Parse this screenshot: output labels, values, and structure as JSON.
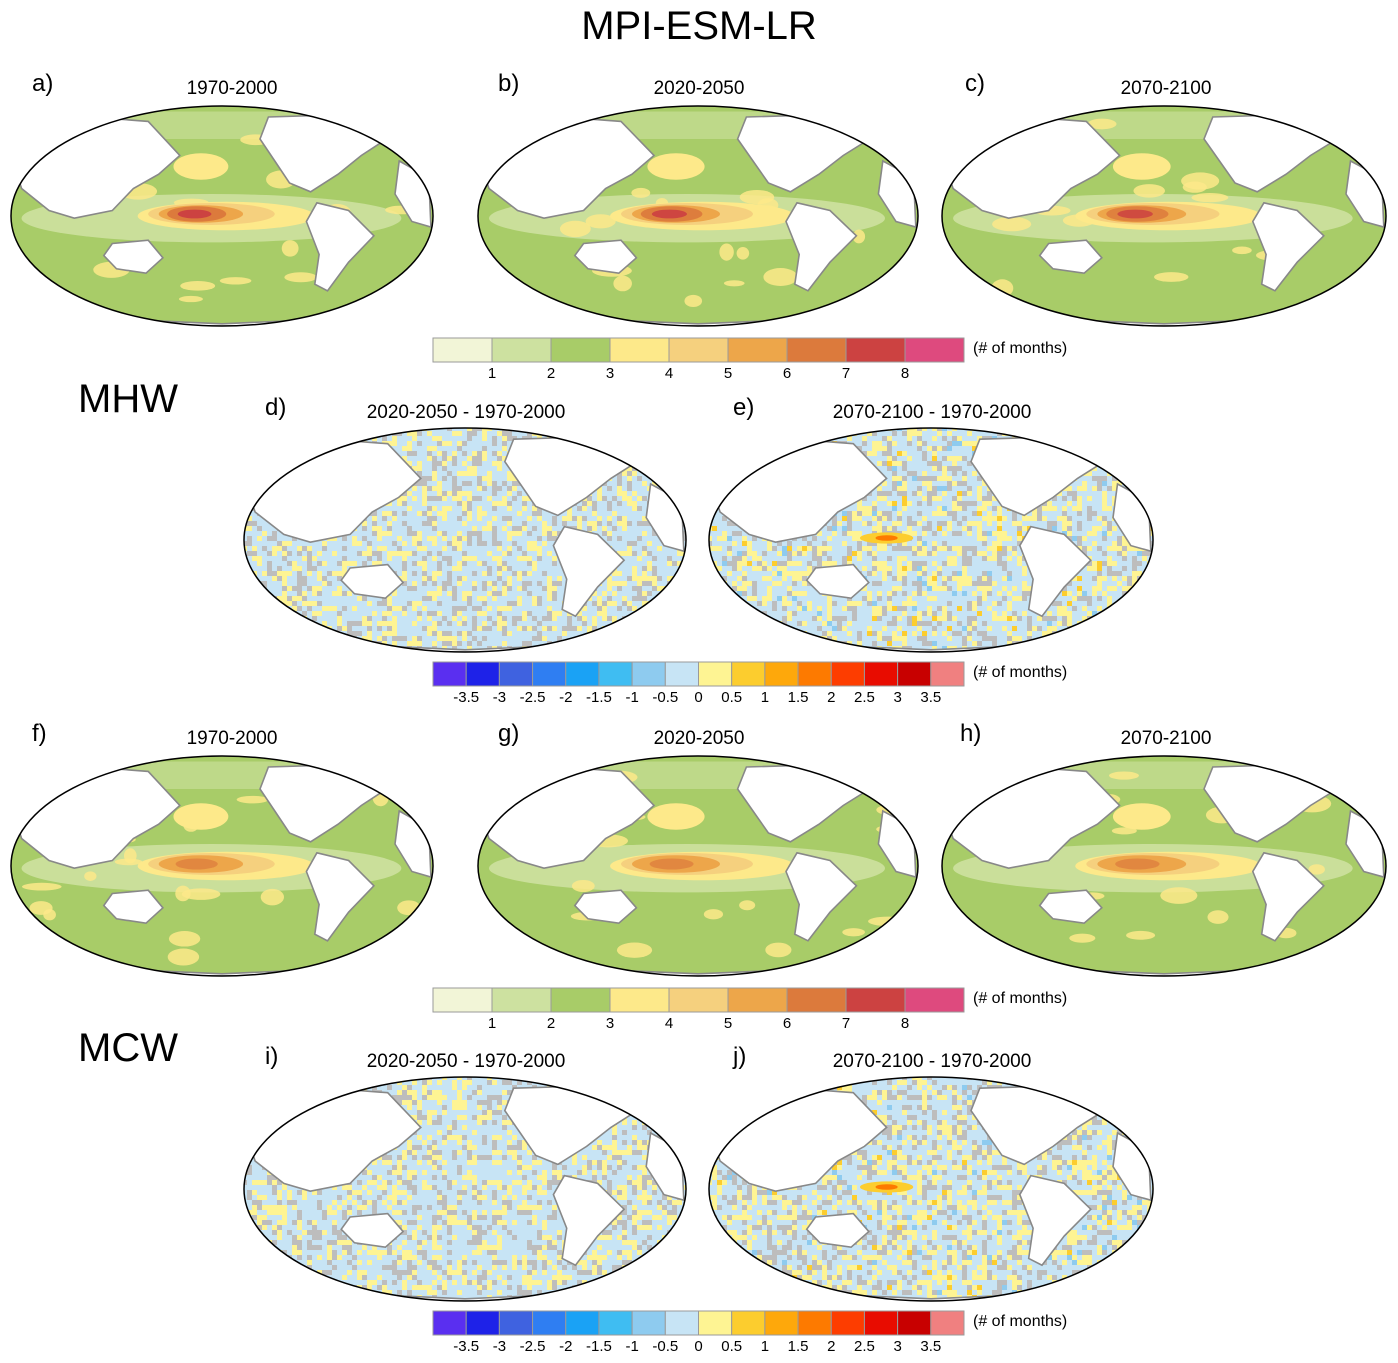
{
  "figure": {
    "title": "MPI-ESM-LR",
    "sections": {
      "mhw": "MHW",
      "mcw": "MCW"
    }
  },
  "colors": {
    "abs_scale": [
      "#f2f5d7",
      "#cde1a0",
      "#a8cc68",
      "#fde98a",
      "#f5d07e",
      "#eda64a",
      "#dc7a3c",
      "#cc4241",
      "#de4a7e"
    ],
    "diff_scale": [
      "#5a2ff0",
      "#1e22e8",
      "#3f62e0",
      "#2f7ef2",
      "#1aa2f5",
      "#3fbdf2",
      "#8ecbef",
      "#c7e4f5",
      "#fef493",
      "#fccd2e",
      "#fea80b",
      "#fd7a00",
      "#fd3d00",
      "#e80c00",
      "#c80000",
      "#f08080"
    ],
    "land": "#ffffff",
    "coast": "#888888",
    "insignificant": "#bdbdbd"
  },
  "colorbars": {
    "abs": {
      "ticks": [
        "1",
        "2",
        "3",
        "4",
        "5",
        "6",
        "7",
        "8"
      ],
      "unit": "(# of months)"
    },
    "diff": {
      "ticks": [
        "-3.5",
        "-3",
        "-2.5",
        "-2",
        "-1.5",
        "-1",
        "-0.5",
        "0",
        "0.5",
        "1",
        "1.5",
        "2",
        "2.5",
        "3",
        "3.5"
      ],
      "unit": "(# of months)"
    }
  },
  "panels": [
    {
      "letter": "a)",
      "title": "1970-2000",
      "kind": "abs",
      "variable": "MHW"
    },
    {
      "letter": "b)",
      "title": "2020-2050",
      "kind": "abs",
      "variable": "MHW"
    },
    {
      "letter": "c)",
      "title": "2070-2100",
      "kind": "abs",
      "variable": "MHW"
    },
    {
      "letter": "d)",
      "title": "2020-2050 - 1970-2000",
      "kind": "diff",
      "variable": "MHW"
    },
    {
      "letter": "e)",
      "title": "2070-2100 - 1970-2000",
      "kind": "diff",
      "variable": "MHW"
    },
    {
      "letter": "f)",
      "title": "1970-2000",
      "kind": "abs",
      "variable": "MCW"
    },
    {
      "letter": "g)",
      "title": "2020-2050",
      "kind": "abs",
      "variable": "MCW"
    },
    {
      "letter": "h)",
      "title": "2070-2100",
      "kind": "abs",
      "variable": "MCW"
    },
    {
      "letter": "i)",
      "title": "2020-2050 - 1970-2000",
      "kind": "diff",
      "variable": "MCW"
    },
    {
      "letter": "j)",
      "title": "2070-2100 - 1970-2000",
      "kind": "diff",
      "variable": "MCW"
    }
  ]
}
